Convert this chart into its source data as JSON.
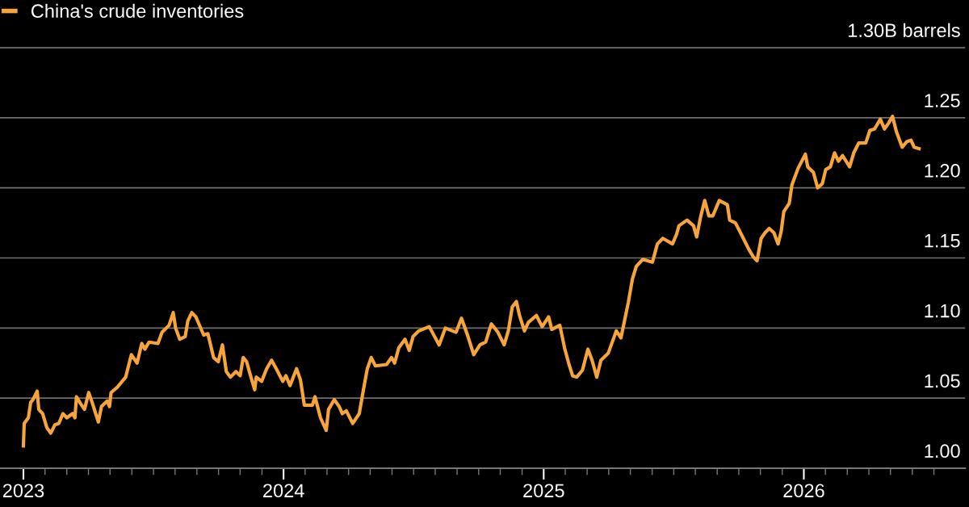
{
  "chart_data": {
    "type": "line",
    "legend": "top left",
    "grid": "y",
    "line_style": "solid",
    "marker": "none",
    "xlim": [
      2022.91,
      2026.62
    ],
    "ylim": [
      1.0,
      1.334
    ],
    "yticks": [
      {
        "value": 1.0,
        "label": "1.00"
      },
      1.05,
      {
        "value": 1.1,
        "label": "1.10"
      },
      1.15,
      {
        "value": 1.2,
        "label": "1.20"
      },
      1.25,
      {
        "value": 1.3,
        "label": "1.30B barrels"
      }
    ],
    "xticks": [
      {
        "value": 2023,
        "label": "2023"
      },
      {
        "value": 2024,
        "label": "2024"
      },
      {
        "value": 2025,
        "label": "2025"
      },
      {
        "value": 2026,
        "label": "2026"
      },
      {
        "value": 2023.083,
        "label": null
      },
      {
        "value": 2023.167,
        "label": null
      },
      {
        "value": 2023.25,
        "label": null
      },
      {
        "value": 2023.333,
        "label": null
      },
      {
        "value": 2023.417,
        "label": null
      },
      {
        "value": 2023.5,
        "label": null
      },
      {
        "value": 2023.583,
        "label": null
      },
      {
        "value": 2023.667,
        "label": null
      },
      {
        "value": 2023.75,
        "label": null
      },
      {
        "value": 2023.833,
        "label": null
      },
      {
        "value": 2023.917,
        "label": null
      },
      {
        "value": 2024.083,
        "label": null
      },
      {
        "value": 2024.167,
        "label": null
      },
      {
        "value": 2024.25,
        "label": null
      },
      {
        "value": 2024.333,
        "label": null
      },
      {
        "value": 2024.417,
        "label": null
      },
      {
        "value": 2024.5,
        "label": null
      },
      {
        "value": 2024.583,
        "label": null
      },
      {
        "value": 2024.667,
        "label": null
      },
      {
        "value": 2024.75,
        "label": null
      },
      {
        "value": 2024.833,
        "label": null
      },
      {
        "value": 2024.917,
        "label": null
      },
      {
        "value": 2025.083,
        "label": null
      },
      {
        "value": 2025.167,
        "label": null
      },
      {
        "value": 2025.25,
        "label": null
      },
      {
        "value": 2025.333,
        "label": null
      },
      {
        "value": 2025.417,
        "label": null
      },
      {
        "value": 2025.5,
        "label": null
      },
      {
        "value": 2025.583,
        "label": null
      },
      {
        "value": 2025.667,
        "label": null
      },
      {
        "value": 2025.75,
        "label": null
      },
      {
        "value": 2025.833,
        "label": null
      },
      {
        "value": 2025.917,
        "label": null
      },
      {
        "value": 2026.083,
        "label": null
      },
      {
        "value": 2026.167,
        "label": null
      },
      {
        "value": 2026.25,
        "label": null
      },
      {
        "value": 2026.333,
        "label": null
      },
      {
        "value": 2026.417,
        "label": null
      },
      {
        "value": 2026.5,
        "label": null
      }
    ],
    "series": [
      {
        "name": "China's crude inventories",
        "color": "#f7a53a",
        "x": [
          2023.0,
          2023.003,
          2023.019,
          2023.028,
          2023.037,
          2023.053,
          2023.059,
          2023.074,
          2023.09,
          2023.105,
          2023.121,
          2023.136,
          2023.152,
          2023.167,
          2023.189,
          2023.198,
          2023.204,
          2023.22,
          2023.235,
          2023.251,
          2023.266,
          2023.288,
          2023.3,
          2023.322,
          2023.331,
          2023.337,
          2023.362,
          2023.393,
          2023.415,
          2023.437,
          2023.455,
          2023.467,
          2023.483,
          2023.517,
          2023.533,
          2023.56,
          2023.576,
          2023.585,
          2023.601,
          2023.622,
          2023.632,
          2023.647,
          2023.663,
          2023.693,
          2023.709,
          2023.731,
          2023.749,
          2023.765,
          2023.78,
          2023.796,
          2023.817,
          2023.833,
          2023.845,
          2023.858,
          2023.87,
          2023.889,
          2023.895,
          2023.916,
          2023.935,
          2023.954,
          2023.972,
          2023.997,
          2024.009,
          2024.025,
          2024.05,
          2024.065,
          2024.08,
          2024.111,
          2024.121,
          2024.142,
          2024.164,
          2024.173,
          2024.195,
          2024.214,
          2024.226,
          2024.241,
          2024.266,
          2024.291,
          2024.307,
          2024.322,
          2024.337,
          2024.353,
          2024.396,
          2024.415,
          2024.427,
          2024.443,
          2024.467,
          2024.483,
          2024.498,
          2024.52,
          2024.56,
          2024.598,
          2024.622,
          2024.663,
          2024.684,
          2024.709,
          2024.731,
          2024.755,
          2024.777,
          2024.799,
          2024.824,
          2024.848,
          2024.864,
          2024.879,
          2024.895,
          2024.907,
          2024.926,
          2024.941,
          2024.972,
          2024.994,
          2025.019,
          2025.031,
          2025.062,
          2025.08,
          2025.096,
          2025.111,
          2025.127,
          2025.149,
          2025.17,
          2025.186,
          2025.204,
          2025.22,
          2025.248,
          2025.279,
          2025.297,
          2025.325,
          2025.341,
          2025.356,
          2025.381,
          2025.418,
          2025.437,
          2025.458,
          2025.495,
          2025.511,
          2025.52,
          2025.551,
          2025.576,
          2025.588,
          2025.604,
          2025.619,
          2025.635,
          2025.65,
          2025.675,
          2025.706,
          2025.715,
          2025.737,
          2025.762,
          2025.789,
          2025.805,
          2025.82,
          2025.836,
          2025.851,
          2025.867,
          2025.885,
          2025.901,
          2025.913,
          2025.923,
          2025.944,
          2025.954,
          2025.978,
          2026.006,
          2026.015,
          2026.037,
          2026.053,
          2026.071,
          2026.084,
          2026.102,
          2026.118,
          2026.133,
          2026.149,
          2026.176,
          2026.192,
          2026.211,
          2026.238,
          2026.254,
          2026.272,
          2026.294,
          2026.31,
          2026.325,
          2026.341,
          2026.356,
          2026.378,
          2026.396,
          2026.412,
          2026.424,
          2026.443
        ],
        "values": [
          1.016,
          1.032,
          1.036,
          1.047,
          1.049,
          1.055,
          1.042,
          1.039,
          1.029,
          1.025,
          1.031,
          1.032,
          1.039,
          1.036,
          1.039,
          1.036,
          1.051,
          1.046,
          1.042,
          1.054,
          1.046,
          1.033,
          1.044,
          1.048,
          1.044,
          1.054,
          1.058,
          1.065,
          1.081,
          1.075,
          1.089,
          1.085,
          1.09,
          1.089,
          1.097,
          1.102,
          1.111,
          1.1,
          1.092,
          1.094,
          1.105,
          1.111,
          1.108,
          1.095,
          1.096,
          1.079,
          1.076,
          1.088,
          1.069,
          1.065,
          1.069,
          1.066,
          1.079,
          1.076,
          1.068,
          1.056,
          1.065,
          1.062,
          1.071,
          1.077,
          1.071,
          1.062,
          1.066,
          1.059,
          1.071,
          1.063,
          1.045,
          1.045,
          1.051,
          1.036,
          1.027,
          1.042,
          1.049,
          1.044,
          1.039,
          1.041,
          1.032,
          1.039,
          1.056,
          1.071,
          1.079,
          1.073,
          1.074,
          1.079,
          1.075,
          1.086,
          1.092,
          1.084,
          1.094,
          1.098,
          1.101,
          1.088,
          1.1,
          1.097,
          1.107,
          1.094,
          1.081,
          1.088,
          1.09,
          1.103,
          1.097,
          1.088,
          1.098,
          1.115,
          1.119,
          1.109,
          1.098,
          1.104,
          1.109,
          1.101,
          1.108,
          1.099,
          1.102,
          1.086,
          1.075,
          1.066,
          1.065,
          1.07,
          1.085,
          1.077,
          1.065,
          1.077,
          1.082,
          1.098,
          1.093,
          1.118,
          1.135,
          1.144,
          1.149,
          1.147,
          1.16,
          1.164,
          1.16,
          1.167,
          1.173,
          1.177,
          1.173,
          1.165,
          1.18,
          1.191,
          1.18,
          1.18,
          1.191,
          1.188,
          1.177,
          1.175,
          1.166,
          1.156,
          1.151,
          1.148,
          1.164,
          1.168,
          1.171,
          1.168,
          1.16,
          1.169,
          1.183,
          1.189,
          1.202,
          1.214,
          1.224,
          1.215,
          1.211,
          1.2,
          1.203,
          1.213,
          1.215,
          1.225,
          1.219,
          1.223,
          1.215,
          1.225,
          1.232,
          1.232,
          1.241,
          1.242,
          1.249,
          1.242,
          1.246,
          1.251,
          1.24,
          1.229,
          1.233,
          1.234,
          1.229,
          1.228
        ]
      }
    ]
  }
}
